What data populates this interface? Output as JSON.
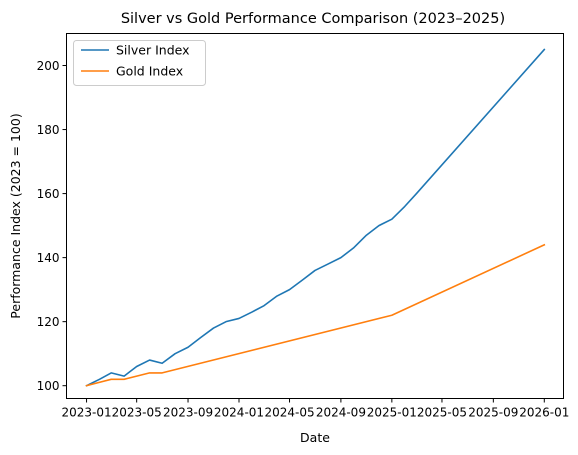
{
  "chart_data": {
    "type": "line",
    "title": "Silver vs Gold Performance Comparison (2023–2025)",
    "xlabel": "Date",
    "ylabel": "Performance Index (2023 = 100)",
    "xlim": [
      "2022-11-14",
      "2026-02-16"
    ],
    "ylim": [
      96,
      210
    ],
    "x_ticks": [
      "2023-01-01",
      "2023-05-01",
      "2023-09-01",
      "2024-01-01",
      "2024-05-01",
      "2024-09-01",
      "2025-01-01",
      "2025-05-01",
      "2025-09-01",
      "2026-01-01"
    ],
    "x_tick_labels": [
      "2023-01",
      "2023-05",
      "2023-09",
      "2024-01",
      "2024-05",
      "2024-09",
      "2025-01",
      "2025-05",
      "2025-09",
      "2026-01"
    ],
    "y_ticks": [
      100,
      120,
      140,
      160,
      180,
      200
    ],
    "y_tick_labels": [
      "100",
      "120",
      "140",
      "160",
      "180",
      "200"
    ],
    "grid": false,
    "legend": "upper-left",
    "series": [
      {
        "name": "Silver Index",
        "color": "#1f77b4",
        "points": [
          [
            "2023-01-01",
            100
          ],
          [
            "2023-02-01",
            102
          ],
          [
            "2023-03-01",
            104
          ],
          [
            "2023-04-01",
            103
          ],
          [
            "2023-05-01",
            106
          ],
          [
            "2023-06-01",
            108
          ],
          [
            "2023-07-01",
            107
          ],
          [
            "2023-08-01",
            110
          ],
          [
            "2023-09-01",
            112
          ],
          [
            "2023-10-01",
            115
          ],
          [
            "2023-11-01",
            118
          ],
          [
            "2023-12-01",
            120
          ],
          [
            "2024-01-01",
            121
          ],
          [
            "2024-02-01",
            123
          ],
          [
            "2024-03-01",
            125
          ],
          [
            "2024-04-01",
            128
          ],
          [
            "2024-05-01",
            130
          ],
          [
            "2024-06-01",
            133
          ],
          [
            "2024-07-01",
            136
          ],
          [
            "2024-08-01",
            138
          ],
          [
            "2024-09-01",
            140
          ],
          [
            "2024-10-01",
            143
          ],
          [
            "2024-11-01",
            147
          ],
          [
            "2024-12-01",
            150
          ],
          [
            "2025-01-01",
            152
          ],
          [
            "2025-02-01",
            156
          ],
          [
            "2025-03-01",
            160
          ],
          [
            "2026-01-01",
            205
          ]
        ]
      },
      {
        "name": "Gold Index",
        "color": "#ff7f0e",
        "points": [
          [
            "2023-01-01",
            100
          ],
          [
            "2023-03-01",
            102
          ],
          [
            "2023-04-01",
            102
          ],
          [
            "2023-06-01",
            104
          ],
          [
            "2023-07-01",
            104
          ],
          [
            "2025-01-01",
            122
          ],
          [
            "2026-01-01",
            144
          ]
        ]
      }
    ]
  }
}
